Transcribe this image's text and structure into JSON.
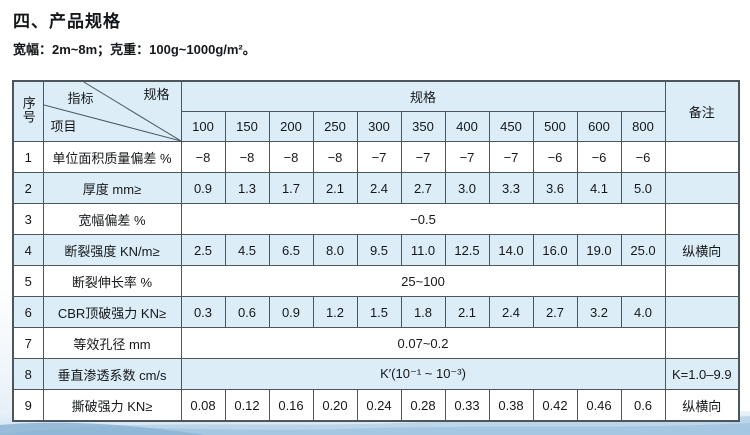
{
  "page": {
    "title": "四、产品规格",
    "subtitle": "宽幅：2m~8m；克重：100g~1000g/m²。"
  },
  "table": {
    "corner": {
      "spec": "规格",
      "indicator": "指标",
      "item": "项目"
    },
    "headers": {
      "index": "序号",
      "spec_group": "规格",
      "remark": "备注"
    },
    "spec_columns": [
      "100",
      "150",
      "200",
      "250",
      "300",
      "350",
      "400",
      "450",
      "500",
      "600",
      "800"
    ],
    "rows": [
      {
        "no": "1",
        "label": "单位面积质量偏差 %",
        "values": [
          "−8",
          "−8",
          "−8",
          "−8",
          "−7",
          "−7",
          "−7",
          "−7",
          "−6",
          "−6",
          "−6"
        ],
        "remark": ""
      },
      {
        "no": "2",
        "label": "厚度 mm≥",
        "values": [
          "0.9",
          "1.3",
          "1.7",
          "2.1",
          "2.4",
          "2.7",
          "3.0",
          "3.3",
          "3.6",
          "4.1",
          "5.0"
        ],
        "remark": ""
      },
      {
        "no": "3",
        "label": "宽幅偏差 %",
        "merged": "−0.5",
        "remark": ""
      },
      {
        "no": "4",
        "label": "断裂强度 KN/m≥",
        "values": [
          "2.5",
          "4.5",
          "6.5",
          "8.0",
          "9.5",
          "11.0",
          "12.5",
          "14.0",
          "16.0",
          "19.0",
          "25.0"
        ],
        "remark": "纵横向"
      },
      {
        "no": "5",
        "label": "断裂伸长率 %",
        "merged": "25~100",
        "remark": ""
      },
      {
        "no": "6",
        "label": "CBR顶破强力 KN≥",
        "values": [
          "0.3",
          "0.6",
          "0.9",
          "1.2",
          "1.5",
          "1.8",
          "2.1",
          "2.4",
          "2.7",
          "3.2",
          "4.0"
        ],
        "remark": ""
      },
      {
        "no": "7",
        "label": "等效孔径 mm",
        "merged": "0.07~0.2",
        "remark": ""
      },
      {
        "no": "8",
        "label": "垂直渗透系数 cm/s",
        "merged": "K′(10⁻¹ ~ 10⁻³)",
        "remark": "K=1.0–9.9"
      },
      {
        "no": "9",
        "label": "撕破强力 KN≥",
        "values": [
          "0.08",
          "0.12",
          "0.16",
          "0.20",
          "0.24",
          "0.28",
          "0.33",
          "0.38",
          "0.42",
          "0.46",
          "0.6"
        ],
        "remark": "纵横向"
      }
    ]
  },
  "colors": {
    "cell_fill": "#dcedf8",
    "border": "#4d565c",
    "wave_light": "#c3d9ec",
    "wave_mid": "#a4c6e0",
    "wave_dark": "#8db4d5"
  }
}
